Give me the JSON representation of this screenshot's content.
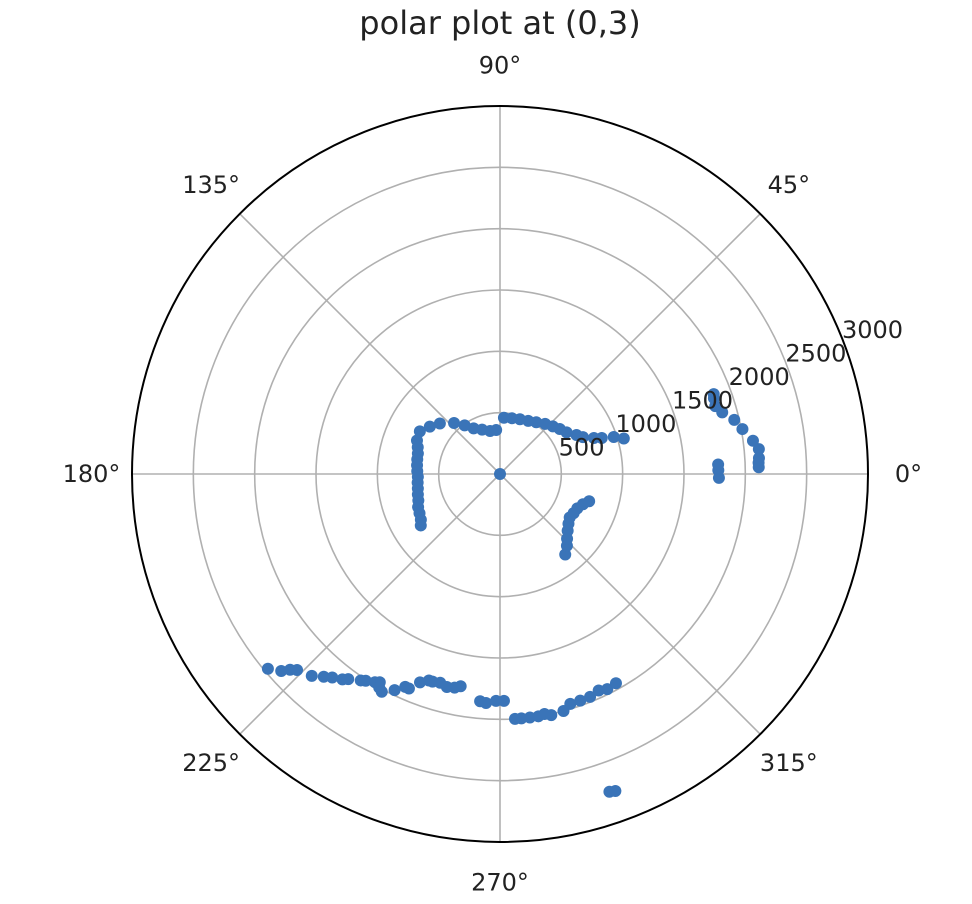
{
  "chart_data": {
    "type": "scatter",
    "projection": "polar",
    "title": "polar plot at (0,3)",
    "theta_tick_labels": [
      "0°",
      "45°",
      "90°",
      "135°",
      "180°",
      "225°",
      "270°",
      "315°"
    ],
    "theta_ticks_deg": [
      0,
      45,
      90,
      135,
      180,
      225,
      270,
      315
    ],
    "r_tick_labels": [
      "500",
      "1000",
      "1500",
      "2000",
      "2500",
      "3000"
    ],
    "r_ticks": [
      500,
      1000,
      1500,
      2000,
      2500,
      3000
    ],
    "rlim": [
      0,
      3000
    ],
    "grid": true,
    "legend": "none",
    "marker_color": "#3a74b8",
    "points": [
      {
        "theta": 0,
        "r": 0
      },
      {
        "theta": 16,
        "r": 1050
      },
      {
        "theta": 18,
        "r": 975
      },
      {
        "theta": 19.5,
        "r": 880
      },
      {
        "theta": 21,
        "r": 820
      },
      {
        "theta": 24,
        "r": 740
      },
      {
        "theta": 27,
        "r": 700
      },
      {
        "theta": 32,
        "r": 640
      },
      {
        "theta": 37,
        "r": 610
      },
      {
        "theta": 42,
        "r": 580
      },
      {
        "theta": 48,
        "r": 550
      },
      {
        "theta": 55,
        "r": 515
      },
      {
        "theta": 62,
        "r": 490
      },
      {
        "theta": 70,
        "r": 475
      },
      {
        "theta": 78,
        "r": 465
      },
      {
        "theta": 86,
        "r": 460
      },
      {
        "theta": 95,
        "r": 360
      },
      {
        "theta": 103,
        "r": 360
      },
      {
        "theta": 112,
        "r": 390
      },
      {
        "theta": 120,
        "r": 430
      },
      {
        "theta": 126,
        "r": 490
      },
      {
        "theta": 132,
        "r": 560
      },
      {
        "theta": 140,
        "r": 640
      },
      {
        "theta": 146,
        "r": 690
      },
      {
        "theta": 152,
        "r": 740
      },
      {
        "theta": 158,
        "r": 730
      },
      {
        "theta": 162,
        "r": 705
      },
      {
        "theta": 166,
        "r": 690
      },
      {
        "theta": 170,
        "r": 685
      },
      {
        "theta": 174,
        "r": 680
      },
      {
        "theta": 178,
        "r": 675
      },
      {
        "theta": 182,
        "r": 670
      },
      {
        "theta": 186,
        "r": 675
      },
      {
        "theta": 190,
        "r": 680
      },
      {
        "theta": 194,
        "r": 690
      },
      {
        "theta": 198,
        "r": 700
      },
      {
        "theta": 202,
        "r": 720
      },
      {
        "theta": 206,
        "r": 730
      },
      {
        "theta": 210,
        "r": 745
      },
      {
        "theta": 213,
        "r": 770
      },
      {
        "theta": 309,
        "r": 845
      },
      {
        "theta": 313,
        "r": 800
      },
      {
        "theta": 316,
        "r": 760
      },
      {
        "theta": 320,
        "r": 720
      },
      {
        "theta": 324,
        "r": 690
      },
      {
        "theta": 328,
        "r": 670
      },
      {
        "theta": 332,
        "r": 680
      },
      {
        "theta": 336,
        "r": 690
      },
      {
        "theta": 340,
        "r": 720
      },
      {
        "theta": 343,
        "r": 760
      },
      {
        "theta": 1,
        "r": 1780
      },
      {
        "theta": 2.5,
        "r": 1780
      },
      {
        "theta": 359,
        "r": 1785
      },
      {
        "theta": 1.5,
        "r": 2110
      },
      {
        "theta": 2.5,
        "r": 2110
      },
      {
        "theta": 3.5,
        "r": 2115
      },
      {
        "theta": 5.5,
        "r": 2120
      },
      {
        "theta": 7.5,
        "r": 2080
      },
      {
        "theta": 10.5,
        "r": 2010
      },
      {
        "theta": 13,
        "r": 1960
      },
      {
        "theta": 15.5,
        "r": 1880
      },
      {
        "theta": 17.5,
        "r": 1840
      },
      {
        "theta": 19.5,
        "r": 1850
      },
      {
        "theta": 20.5,
        "r": 1860
      },
      {
        "theta": 220,
        "r": 2470
      },
      {
        "theta": 222,
        "r": 2400
      },
      {
        "theta": 223,
        "r": 2340
      },
      {
        "theta": 224,
        "r": 2300
      },
      {
        "theta": 227,
        "r": 2250
      },
      {
        "theta": 229,
        "r": 2190
      },
      {
        "theta": 230.5,
        "r": 2150
      },
      {
        "theta": 232.5,
        "r": 2110
      },
      {
        "theta": 233.5,
        "r": 2080
      },
      {
        "theta": 236,
        "r": 2030
      },
      {
        "theta": 237,
        "r": 2010
      },
      {
        "theta": 239,
        "r": 1980
      },
      {
        "theta": 240,
        "r": 1960
      },
      {
        "theta": 240.5,
        "r": 2000
      },
      {
        "theta": 241.5,
        "r": 2020
      },
      {
        "theta": 244,
        "r": 1960
      },
      {
        "theta": 246,
        "r": 1900
      },
      {
        "theta": 247,
        "r": 1900
      },
      {
        "theta": 249,
        "r": 1820
      },
      {
        "theta": 251,
        "r": 1780
      },
      {
        "theta": 252,
        "r": 1780
      },
      {
        "theta": 254,
        "r": 1770
      },
      {
        "theta": 256,
        "r": 1790
      },
      {
        "theta": 258,
        "r": 1780
      },
      {
        "theta": 259.5,
        "r": 1760
      },
      {
        "theta": 265,
        "r": 1860
      },
      {
        "theta": 266.5,
        "r": 1870
      },
      {
        "theta": 269,
        "r": 1850
      },
      {
        "theta": 271,
        "r": 1850
      },
      {
        "theta": 273.5,
        "r": 2000
      },
      {
        "theta": 275,
        "r": 2000
      },
      {
        "theta": 277,
        "r": 2000
      },
      {
        "theta": 279,
        "r": 2000
      },
      {
        "theta": 280.5,
        "r": 1990
      },
      {
        "theta": 282,
        "r": 2010
      },
      {
        "theta": 285,
        "r": 2000
      },
      {
        "theta": 287,
        "r": 1960
      },
      {
        "theta": 289.5,
        "r": 1960
      },
      {
        "theta": 292,
        "r": 1960
      },
      {
        "theta": 294.5,
        "r": 1940
      },
      {
        "theta": 296.5,
        "r": 1960
      },
      {
        "theta": 299,
        "r": 1950
      },
      {
        "theta": 289,
        "r": 2740
      },
      {
        "theta": 290,
        "r": 2750
      }
    ]
  }
}
